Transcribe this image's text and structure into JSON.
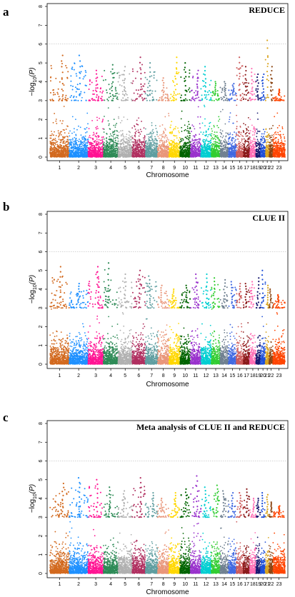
{
  "chart_data": [
    {
      "type": "scatter",
      "panel_label": "a",
      "title": "REDUCE",
      "xlabel": "Chromosome",
      "ylabel_parts": [
        "−log",
        "10",
        "(P)"
      ],
      "ylim": [
        0,
        8
      ],
      "yticks": [
        0,
        1,
        2,
        3,
        4,
        5,
        6,
        7,
        8
      ],
      "threshold": 6,
      "categories": [
        "1",
        "2",
        "3",
        "4",
        "5",
        "6",
        "7",
        "8",
        "9",
        "10",
        "11",
        "12",
        "13",
        "14",
        "15",
        "16",
        "17",
        "18",
        "19",
        "20",
        "21",
        "22",
        "23"
      ],
      "peaks": [
        5.4,
        5.4,
        4.6,
        4.9,
        4.8,
        5.3,
        5.0,
        4.2,
        5.3,
        5.0,
        4.6,
        4.8,
        4.0,
        4.0,
        3.9,
        5.3,
        4.8,
        4.7,
        4.4,
        4.4,
        6.2,
        4.8,
        3.6
      ],
      "colors": [
        "#d2691e",
        "#1e90ff",
        "#ff1493",
        "#2e8b57",
        "#b0b0b0",
        "#b03060",
        "#5f9ea0",
        "#e9967a",
        "#ffd700",
        "#006400",
        "#9932cc",
        "#00ced1",
        "#32cd32",
        "#708090",
        "#4169e1",
        "#cd5c5c",
        "#8b1a1a",
        "#ff6eb4",
        "#191970",
        "#1e4fd8",
        "#daa520",
        "#8b4513",
        "#ff4500"
      ]
    },
    {
      "type": "scatter",
      "panel_label": "b",
      "title": "CLUE II",
      "xlabel": "Chromosome",
      "ylabel_parts": [
        "−log",
        "10",
        "(P)"
      ],
      "ylim": [
        0,
        8
      ],
      "yticks": [
        0,
        1,
        2,
        3,
        4,
        5,
        6,
        7,
        8
      ],
      "threshold": 6,
      "categories": [
        "1",
        "2",
        "3",
        "4",
        "5",
        "6",
        "7",
        "8",
        "9",
        "10",
        "11",
        "12",
        "13",
        "14",
        "15",
        "16",
        "17",
        "18",
        "19",
        "20",
        "21",
        "22",
        "23"
      ],
      "peaks": [
        5.2,
        4.3,
        5.2,
        5.4,
        4.8,
        5.0,
        4.7,
        4.2,
        4.0,
        4.2,
        4.8,
        4.8,
        4.6,
        4.5,
        4.4,
        4.3,
        4.3,
        4.4,
        4.6,
        5.0,
        4.2,
        4.0,
        3.7
      ],
      "colors": [
        "#d2691e",
        "#1e90ff",
        "#ff1493",
        "#2e8b57",
        "#b0b0b0",
        "#b03060",
        "#5f9ea0",
        "#e9967a",
        "#ffd700",
        "#006400",
        "#9932cc",
        "#00ced1",
        "#32cd32",
        "#708090",
        "#4169e1",
        "#cd5c5c",
        "#8b1a1a",
        "#ff6eb4",
        "#191970",
        "#1e4fd8",
        "#daa520",
        "#8b4513",
        "#ff4500"
      ]
    },
    {
      "type": "scatter",
      "panel_label": "c",
      "title": "Meta analysis of CLUE II and REDUCE",
      "xlabel": "Chromosome",
      "ylabel_parts": [
        "−log",
        "10",
        "(P)"
      ],
      "ylim": [
        0,
        8
      ],
      "yticks": [
        0,
        1,
        2,
        3,
        4,
        5,
        6,
        7,
        8
      ],
      "threshold": 6,
      "categories": [
        "1",
        "2",
        "3",
        "4",
        "5",
        "6",
        "7",
        "8",
        "9",
        "10",
        "11",
        "12",
        "13",
        "14",
        "15",
        "16",
        "17",
        "18",
        "19",
        "20",
        "21",
        "22",
        "23"
      ],
      "peaks": [
        4.8,
        5.1,
        5.0,
        4.6,
        4.4,
        5.1,
        4.3,
        4.0,
        4.3,
        4.5,
        5.2,
        4.6,
        4.7,
        4.4,
        4.3,
        4.3,
        4.5,
        4.0,
        4.0,
        4.3,
        4.2,
        3.8,
        3.6
      ],
      "colors": [
        "#d2691e",
        "#1e90ff",
        "#ff1493",
        "#2e8b57",
        "#b0b0b0",
        "#b03060",
        "#5f9ea0",
        "#e9967a",
        "#ffd700",
        "#006400",
        "#9932cc",
        "#00ced1",
        "#32cd32",
        "#708090",
        "#4169e1",
        "#cd5c5c",
        "#8b1a1a",
        "#ff6eb4",
        "#191970",
        "#1e4fd8",
        "#daa520",
        "#8b4513",
        "#ff4500"
      ]
    }
  ]
}
